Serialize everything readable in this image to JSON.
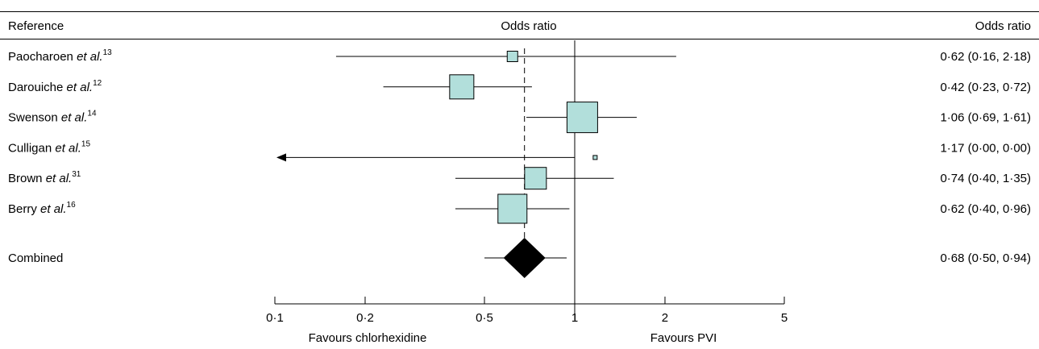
{
  "chart_data": {
    "type": "forest",
    "header": {
      "reference": "Reference",
      "odds_ratio_center": "Odds ratio",
      "odds_ratio_right": "Odds ratio"
    },
    "studies": [
      {
        "name": "Paocharoen",
        "etal": "et al.",
        "sup": "13",
        "or": 0.62,
        "lo": 0.16,
        "hi": 2.18,
        "text": "0·62 (0·16, 2·18)",
        "weight": 0.35
      },
      {
        "name": "Darouiche",
        "etal": "et al.",
        "sup": "12",
        "or": 0.42,
        "lo": 0.23,
        "hi": 0.72,
        "text": "0·42 (0·23, 0·72)",
        "weight": 0.8
      },
      {
        "name": "Swenson",
        "etal": "et al.",
        "sup": "14",
        "or": 1.06,
        "lo": 0.69,
        "hi": 1.61,
        "text": "1·06 (0·69, 1·61)",
        "weight": 1.0
      },
      {
        "name": "Culligan",
        "etal": "et al.",
        "sup": "15",
        "or": 1.17,
        "lo": 0.0,
        "hi": 0.0,
        "text": "1·17 (0·00, 0·00)",
        "weight": 0.13,
        "arrow_left": true
      },
      {
        "name": "Brown",
        "etal": "et al.",
        "sup": "31",
        "or": 0.74,
        "lo": 0.4,
        "hi": 1.35,
        "text": "0·74 (0·40, 1·35)",
        "weight": 0.7
      },
      {
        "name": "Berry",
        "etal": "et al.",
        "sup": "16",
        "or": 0.62,
        "lo": 0.4,
        "hi": 0.96,
        "text": "0·62 (0·40, 0·96)",
        "weight": 0.95
      }
    ],
    "combined": {
      "name": "Combined",
      "or": 0.68,
      "lo": 0.5,
      "hi": 0.94,
      "text": "0·68 (0·50, 0·94)"
    },
    "x_scale": "log",
    "xlim": [
      0.1,
      5
    ],
    "ticks": [
      {
        "value": 0.1,
        "label": "0·1"
      },
      {
        "value": 0.2,
        "label": "0·2"
      },
      {
        "value": 0.5,
        "label": "0·5"
      },
      {
        "value": 1,
        "label": "1"
      },
      {
        "value": 2,
        "label": "2"
      },
      {
        "value": 5,
        "label": "5"
      }
    ],
    "favours_left": "Favours chlorhexidine",
    "favours_right": "Favours PVI",
    "colors": {
      "box_fill": "#b2dfdb",
      "line": "#000000",
      "diamond": "#000000"
    }
  }
}
